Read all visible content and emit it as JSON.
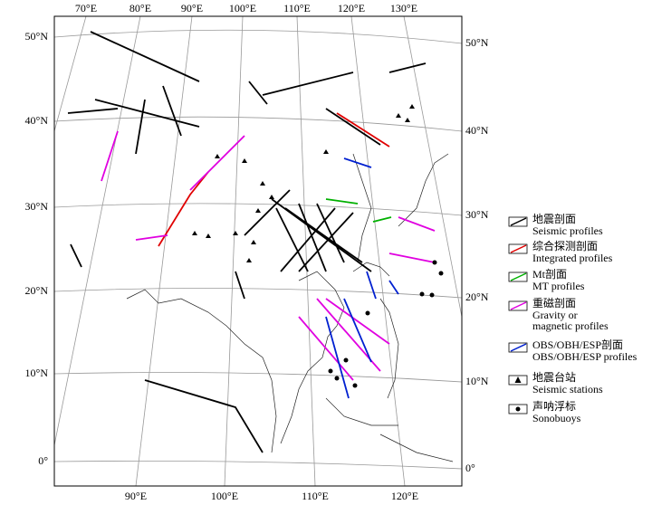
{
  "top_labels": [
    "70°E",
    "80°E",
    "90°E",
    "100°E",
    "110°E",
    "120°E",
    "130°E"
  ],
  "bottom_labels": [
    "90°E",
    "100°E",
    "110°E",
    "120°E"
  ],
  "left_labels": [
    "50°N",
    "40°N",
    "30°N",
    "20°N",
    "10°N",
    "0°"
  ],
  "right_labels": [
    "50°N",
    "40°N",
    "30°N",
    "20°N",
    "10°N",
    "0°"
  ],
  "legend": [
    {
      "zh": "地震剖面",
      "en": [
        "Seismic profiles"
      ]
    },
    {
      "zh": "综合探测剖面",
      "en": [
        "Integrated profiles"
      ]
    },
    {
      "zh": "Mt剖面",
      "en": [
        "MT profiles"
      ]
    },
    {
      "zh": "重磁剖面",
      "en": [
        "Gravity or",
        "magnetic profiles"
      ]
    },
    {
      "zh": "OBS/OBH/ESP剖面",
      "en": [
        "OBS/OBH/ESP profiles"
      ]
    },
    {
      "zh": "地震台站",
      "en": [
        "Seismic stations"
      ]
    },
    {
      "zh": "声呐浮标",
      "en": [
        "Sonobuoys"
      ]
    }
  ]
}
